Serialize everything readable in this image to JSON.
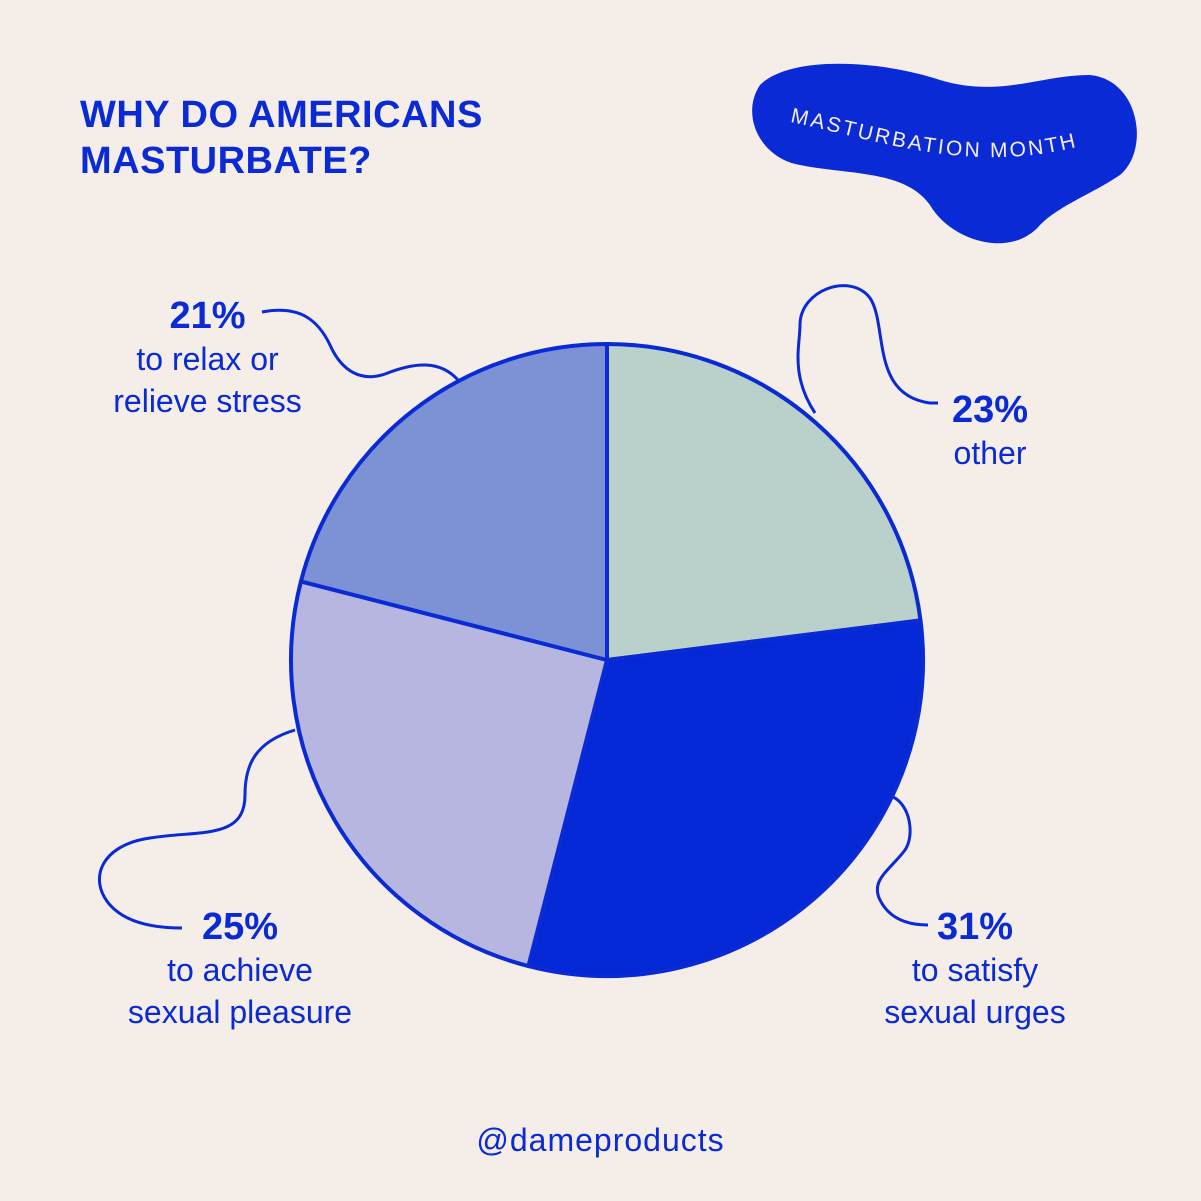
{
  "title": {
    "line1": "WHY DO AMERICANS",
    "line2": "MASTURBATE?"
  },
  "badge": {
    "text": "MASTURBATION MONTH",
    "color": "#0a2ad6"
  },
  "footer": {
    "handle": "@dameproducts"
  },
  "colors": {
    "background": "#f4ede8",
    "outline": "#0a2ad6",
    "text": "#0a2ad6"
  },
  "chart_data": {
    "type": "pie",
    "slices": [
      {
        "label_pct": "23%",
        "label_lines": [
          "other"
        ],
        "value": 23,
        "color": "#bad1cb"
      },
      {
        "label_pct": "31%",
        "label_lines": [
          "to satisfy",
          "sexual urges"
        ],
        "value": 31,
        "color": "#0528d7"
      },
      {
        "label_pct": "25%",
        "label_lines": [
          "to achieve",
          "sexual pleasure"
        ],
        "value": 25,
        "color": "#b6b6e0"
      },
      {
        "label_pct": "21%",
        "label_lines": [
          "to relax or",
          "relieve stress"
        ],
        "value": 21,
        "color": "#7d92d4"
      }
    ]
  }
}
